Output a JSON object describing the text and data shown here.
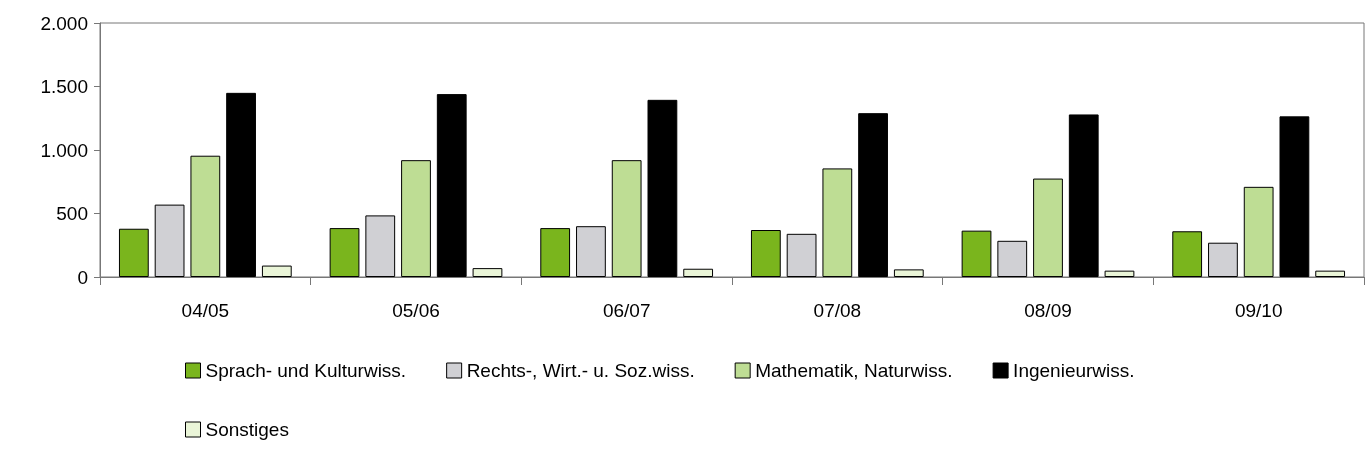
{
  "chart_data": {
    "type": "bar",
    "categories": [
      "04/05",
      "05/06",
      "06/07",
      "07/08",
      "08/09",
      "09/10"
    ],
    "series": [
      {
        "name": "Sprach- und Kulturwiss.",
        "color": "#7ab51d",
        "values": [
          380,
          385,
          385,
          370,
          365,
          360
        ]
      },
      {
        "name": "Rechts-, Wirt.- u. Soz.wiss.",
        "color": "#d0d0d4",
        "values": [
          570,
          485,
          400,
          340,
          285,
          270
        ]
      },
      {
        "name": "Mathematik, Naturwiss.",
        "color": "#bedd94",
        "values": [
          955,
          920,
          920,
          855,
          775,
          710
        ]
      },
      {
        "name": "Ingenieurwiss.",
        "color": "#000000",
        "values": [
          1450,
          1440,
          1395,
          1290,
          1280,
          1265
        ]
      },
      {
        "name": "Sonstiges",
        "color": "#eaf5d8",
        "values": [
          90,
          70,
          65,
          60,
          50,
          50
        ]
      }
    ],
    "ylim": [
      0,
      2000
    ],
    "yticks": [
      0,
      500,
      {
        "value": 1000,
        "label": "1.000"
      },
      {
        "value": 1500,
        "label": "1.500"
      },
      {
        "value": 2000,
        "label": "2.000"
      }
    ],
    "grid": false,
    "legend": "bottom"
  }
}
